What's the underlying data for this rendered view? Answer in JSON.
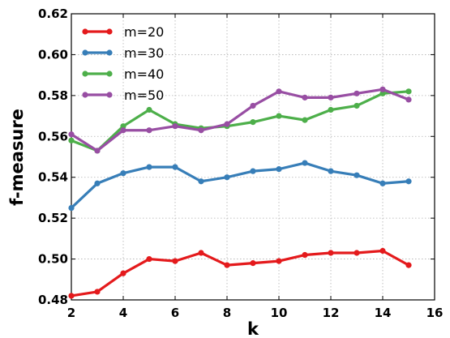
{
  "chart_data": {
    "type": "line",
    "title": "",
    "xlabel": "k",
    "ylabel": "f-measure",
    "xlim": [
      2,
      16
    ],
    "ylim": [
      0.48,
      0.62
    ],
    "xticks": [
      2,
      4,
      6,
      8,
      10,
      12,
      14,
      16
    ],
    "yticks": [
      0.48,
      0.5,
      0.52,
      0.54,
      0.56,
      0.58,
      0.6,
      0.62
    ],
    "ytick_labels": [
      "0.48",
      "0.50",
      "0.52",
      "0.54",
      "0.56",
      "0.58",
      "0.60",
      "0.62"
    ],
    "grid": true,
    "legend_position": "top-left",
    "x": [
      2,
      3,
      4,
      5,
      6,
      7,
      8,
      9,
      10,
      11,
      12,
      13,
      14,
      15
    ],
    "series": [
      {
        "name": "m=20",
        "color": "#e41a1c",
        "values": [
          0.482,
          0.484,
          0.493,
          0.5,
          0.499,
          0.503,
          0.497,
          0.498,
          0.499,
          0.502,
          0.503,
          0.503,
          0.504,
          0.497
        ]
      },
      {
        "name": "m=30",
        "color": "#377eb8",
        "values": [
          0.525,
          0.537,
          0.542,
          0.545,
          0.545,
          0.538,
          0.54,
          0.543,
          0.544,
          0.547,
          0.543,
          0.541,
          0.537,
          0.538
        ]
      },
      {
        "name": "m=40",
        "color": "#4daf4a",
        "values": [
          0.558,
          0.553,
          0.565,
          0.573,
          0.566,
          0.564,
          0.565,
          0.567,
          0.57,
          0.568,
          0.573,
          0.575,
          0.581,
          0.582
        ]
      },
      {
        "name": "m=50",
        "color": "#984ea3",
        "values": [
          0.561,
          0.553,
          0.563,
          0.563,
          0.565,
          0.563,
          0.566,
          0.575,
          0.582,
          0.579,
          0.579,
          0.581,
          0.583,
          0.578
        ]
      }
    ]
  }
}
